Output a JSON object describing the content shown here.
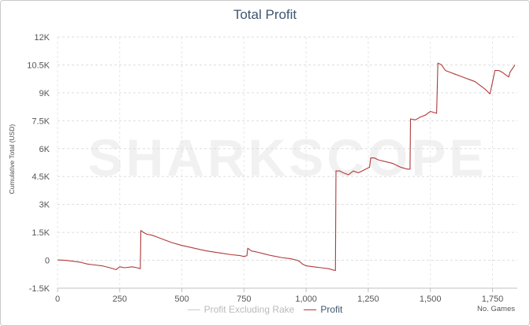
{
  "chart_data": {
    "type": "line",
    "title": "Total Profit",
    "ylabel": "Cumulative Total (USD)",
    "xlabel": "No. Games",
    "ylim": [
      -1500,
      12000
    ],
    "xlim": [
      0,
      1850
    ],
    "y_ticks": [
      "12K",
      "10.5K",
      "9K",
      "7.5K",
      "6K",
      "4.5K",
      "3K",
      "1.5K",
      "0",
      "-1.5K"
    ],
    "y_tick_values": [
      12000,
      10500,
      9000,
      7500,
      6000,
      4500,
      3000,
      1500,
      0,
      -1500
    ],
    "x_ticks": [
      "0",
      "250",
      "500",
      "750",
      "1,000",
      "1,250",
      "1,500",
      "1,750"
    ],
    "x_tick_values": [
      0,
      250,
      500,
      750,
      1000,
      1250,
      1500,
      1750
    ],
    "grid": true,
    "legend_placement": "bottom",
    "watermark": "SHARKSCOPE",
    "series": [
      {
        "name": "Profit Excluding Rake",
        "color": "#cccccc",
        "visible": false,
        "x": [],
        "y": []
      },
      {
        "name": "Profit",
        "color": "#b03a3a",
        "visible": true,
        "x": [
          0,
          30,
          60,
          90,
          120,
          150,
          180,
          210,
          235,
          250,
          270,
          300,
          320,
          333,
          335,
          345,
          360,
          380,
          400,
          430,
          460,
          500,
          550,
          600,
          650,
          700,
          735,
          750,
          762,
          765,
          780,
          800,
          830,
          860,
          900,
          940,
          965,
          975,
          985,
          1000,
          1030,
          1060,
          1090,
          1118,
          1120,
          1135,
          1150,
          1170,
          1190,
          1210,
          1240,
          1255,
          1260,
          1275,
          1290,
          1320,
          1350,
          1380,
          1408,
          1418,
          1420,
          1440,
          1460,
          1480,
          1500,
          1525,
          1530,
          1545,
          1560,
          1580,
          1600,
          1620,
          1640,
          1660,
          1680,
          1700,
          1720,
          1735,
          1740,
          1760,
          1775,
          1790,
          1800,
          1815,
          1820,
          1835,
          1840
        ],
        "y": [
          20,
          0,
          -50,
          -100,
          -200,
          -250,
          -300,
          -400,
          -500,
          -350,
          -400,
          -350,
          -400,
          -450,
          1600,
          1500,
          1400,
          1350,
          1250,
          1100,
          950,
          800,
          650,
          500,
          400,
          300,
          250,
          200,
          250,
          650,
          500,
          450,
          350,
          250,
          150,
          80,
          0,
          -80,
          -200,
          -300,
          -350,
          -400,
          -450,
          -550,
          4800,
          4800,
          4700,
          4600,
          4800,
          4700,
          4900,
          5000,
          5500,
          5500,
          5400,
          5300,
          5200,
          5000,
          4900,
          4900,
          7600,
          7550,
          7700,
          7800,
          8000,
          7900,
          10600,
          10500,
          10200,
          10100,
          10000,
          9900,
          9800,
          9700,
          9600,
          9400,
          9200,
          9000,
          8950,
          10200,
          10200,
          10100,
          10000,
          9850,
          10100,
          10400,
          10500
        ]
      }
    ]
  },
  "legend": {
    "items": [
      {
        "label": "Profit Excluding Rake",
        "color": "#cccccc",
        "active": false
      },
      {
        "label": "Profit",
        "color": "#b03a3a",
        "active": true
      }
    ]
  }
}
